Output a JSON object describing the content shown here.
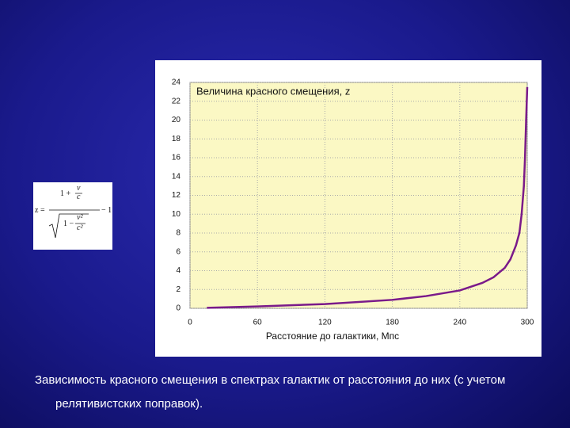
{
  "chart_data": {
    "type": "line",
    "title": "Величина красного смещения, z",
    "x_label": "Расстояние до галактики, Мпс",
    "x": [
      15,
      60,
      120,
      180,
      210,
      240,
      260,
      270,
      280,
      285,
      290,
      293,
      295,
      297,
      298,
      299,
      300
    ],
    "series": [
      {
        "color": "#7a1a8a",
        "values": [
          0.05,
          0.2,
          0.45,
          0.9,
          1.3,
          1.9,
          2.7,
          3.3,
          4.3,
          5.2,
          6.7,
          8,
          10,
          13,
          16,
          20,
          23.5
        ]
      }
    ],
    "xlim": [
      0,
      300
    ],
    "xticks": [
      0,
      60,
      120,
      180,
      240,
      300
    ],
    "ylim": [
      0,
      24
    ],
    "yticks": [
      0,
      2,
      4,
      6,
      8,
      10,
      12,
      14,
      16,
      18,
      20,
      22,
      24
    ],
    "grid": true
  },
  "formula": {
    "lhs": "z =",
    "numerator": "1 +",
    "v": "v",
    "c": "c",
    "sqrt_one": "1 −",
    "v2": "v²",
    "c2": "c²",
    "tail": "− 1"
  },
  "caption": "Зависимость красного смещения в спектрах галактик от расстояния до них (с учетом релятивистских поправок)."
}
